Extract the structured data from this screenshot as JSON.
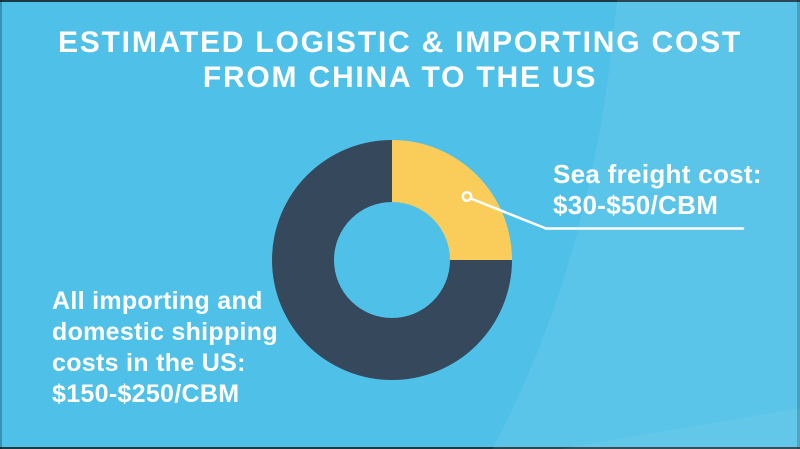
{
  "title": {
    "line1": "ESTIMATED LOGISTIC & IMPORTING COST",
    "line2": "FROM CHINA TO THE US"
  },
  "palette": {
    "background": "#4FC1E8",
    "title_text": "#FFFFFF",
    "label_text": "#FFFFFF",
    "callout_line": "#FFFFFF",
    "segment_yellow": "#FACD5A",
    "segment_dark": "#36495C"
  },
  "chart_data": {
    "type": "pie",
    "subtype": "donut",
    "title": "ESTIMATED LOGISTIC & IMPORTING COST FROM CHINA TO THE US",
    "legend_position": "callout-labels",
    "segments": [
      {
        "label": "Sea freight cost",
        "value_text": "$30-$50/CBM",
        "percent": 25,
        "color": "#FACD5A"
      },
      {
        "label": "All importing and domestic shipping costs in the US",
        "value_text": "$150-$250/CBM",
        "percent": 75,
        "color": "#36495C"
      }
    ]
  },
  "annotations": {
    "sea_freight": {
      "lines": [
        "Sea freight cost:",
        "$30-$50/CBM"
      ]
    },
    "domestic": {
      "lines": [
        "All importing and",
        "domestic shipping",
        "costs in the US:",
        "$150-$250/CBM"
      ]
    }
  }
}
